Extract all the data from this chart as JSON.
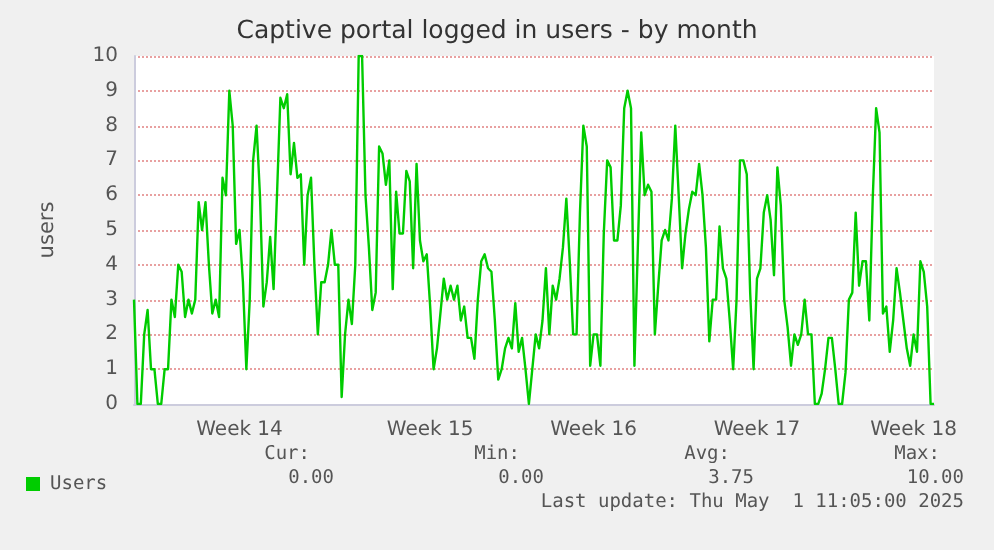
{
  "chart_data": {
    "type": "line",
    "title": "Captive portal logged in users - by month",
    "ylabel": "users",
    "categories": [
      null,
      null,
      null,
      null,
      null,
      null,
      null,
      null,
      null,
      null,
      null,
      null,
      null,
      null,
      null,
      null,
      null,
      null,
      null,
      null,
      null,
      null,
      null,
      null,
      null,
      null,
      null,
      null,
      null,
      null,
      null,
      "Week 14",
      null,
      null,
      null,
      null,
      null,
      null,
      null,
      null,
      null,
      null,
      null,
      null,
      null,
      null,
      null,
      null,
      null,
      null,
      null,
      null,
      null,
      null,
      null,
      null,
      null,
      null,
      null,
      null,
      null,
      null,
      null,
      null,
      null,
      null,
      null,
      null,
      null,
      null,
      null,
      null,
      null,
      null,
      null,
      null,
      null,
      null,
      null,
      null,
      null,
      null,
      null,
      null,
      null,
      null,
      null,
      "Week 15",
      null,
      null,
      null,
      null,
      null,
      null,
      null,
      null,
      null,
      null,
      null,
      null,
      null,
      null,
      null,
      null,
      null,
      null,
      null,
      null,
      null,
      null,
      null,
      null,
      null,
      null,
      null,
      null,
      null,
      null,
      null,
      null,
      null,
      null,
      null,
      null,
      null,
      null,
      null,
      null,
      null,
      null,
      null,
      null,
      null,
      null,
      null,
      "Week 16",
      null,
      null,
      null,
      null,
      null,
      null,
      null,
      null,
      null,
      null,
      null,
      null,
      null,
      null,
      null,
      null,
      null,
      null,
      null,
      null,
      null,
      null,
      null,
      null,
      null,
      null,
      null,
      null,
      null,
      null,
      null,
      null,
      null,
      null,
      null,
      null,
      null,
      null,
      null,
      null,
      null,
      null,
      null,
      null,
      null,
      null,
      null,
      "Week 17",
      null,
      null,
      null,
      null,
      null,
      null,
      null,
      null,
      null,
      null,
      null,
      null,
      null,
      null,
      null,
      null,
      null,
      null,
      null,
      null,
      null,
      null,
      null,
      null,
      null,
      null,
      null,
      null,
      null,
      null,
      null,
      null,
      null,
      null,
      null,
      null,
      null,
      null,
      null,
      null,
      null,
      null,
      null,
      null,
      null,
      "Week 18",
      null,
      null,
      null,
      null,
      null,
      null
    ],
    "ylim": [
      0,
      10
    ],
    "yticks": [
      0,
      1,
      2,
      3,
      4,
      5,
      6,
      7,
      8,
      9,
      10
    ],
    "grid": "y",
    "legend": "bottom left",
    "marker": "none",
    "line_style": "solid",
    "series": [
      {
        "name": "Users",
        "color": "#00cc00",
        "values": [
          3,
          0,
          0,
          2,
          2.7,
          1,
          1,
          0,
          0,
          1,
          1,
          3,
          2.5,
          4,
          3.8,
          2.5,
          3,
          2.6,
          3,
          5.8,
          5,
          5.8,
          4,
          2.6,
          3,
          2.5,
          6.5,
          6,
          9,
          8,
          4.6,
          5,
          3.5,
          1,
          3,
          7,
          8,
          6,
          2.8,
          3.5,
          4.8,
          3.3,
          6,
          8.8,
          8.5,
          8.9,
          6.6,
          7.5,
          6.5,
          6.6,
          4,
          6,
          6.5,
          4,
          2,
          3.5,
          3.5,
          4,
          5,
          4,
          4,
          0.2,
          2,
          3,
          2.3,
          4,
          10,
          10,
          6,
          4.5,
          2.7,
          3.2,
          7.4,
          7.2,
          6.3,
          7,
          3.3,
          6.1,
          4.9,
          4.9,
          6.7,
          6.4,
          3.9,
          6.9,
          4.7,
          4.1,
          4.3,
          2.8,
          1,
          1.6,
          2.6,
          3.6,
          3,
          3.4,
          3,
          3.4,
          2.4,
          2.8,
          1.9,
          1.9,
          1.3,
          3,
          4.1,
          4.3,
          3.9,
          3.8,
          2.4,
          0.7,
          1,
          1.6,
          1.9,
          1.6,
          2.9,
          1.5,
          1.9,
          1,
          0,
          1,
          2,
          1.6,
          2.4,
          3.9,
          2,
          3.4,
          3,
          3.6,
          4.5,
          5.9,
          4.1,
          2,
          2,
          5.5,
          8,
          7.4,
          1.1,
          2,
          2,
          1.1,
          4.9,
          7,
          6.8,
          4.7,
          4.7,
          5.7,
          8.5,
          9,
          8.5,
          1.1,
          4.5,
          7.8,
          6,
          6.3,
          6.1,
          2,
          3.4,
          4.7,
          5,
          4.7,
          5.9,
          8,
          6,
          3.9,
          4.9,
          5.6,
          6.1,
          6,
          6.9,
          6,
          4.5,
          1.8,
          3,
          3,
          5.1,
          3.9,
          3.6,
          2.4,
          1,
          3,
          7,
          7,
          6.6,
          3.2,
          1,
          3.6,
          3.9,
          5.5,
          6,
          5.3,
          3.7,
          6.8,
          5.7,
          3,
          2.2,
          1.1,
          2,
          1.7,
          2,
          3,
          2,
          2,
          0,
          0,
          0.3,
          1,
          1.9,
          1.9,
          1,
          0,
          0,
          0.9,
          3,
          3.2,
          5.5,
          3.4,
          4.1,
          4.1,
          2.4,
          5.9,
          8.5,
          7.8,
          2.6,
          2.8,
          1.5,
          2.4,
          3.9,
          3.2,
          2.4,
          1.6,
          1.1,
          2,
          1.5,
          4.1,
          3.8,
          2.8,
          0,
          0
        ]
      }
    ],
    "annotations": [
      "Cur:",
      "0.00",
      "Min:",
      "0.00",
      "Avg:",
      "3.75",
      "Max:",
      "10.00",
      "Last update: Thu May  1 11:05:00 2025"
    ]
  }
}
